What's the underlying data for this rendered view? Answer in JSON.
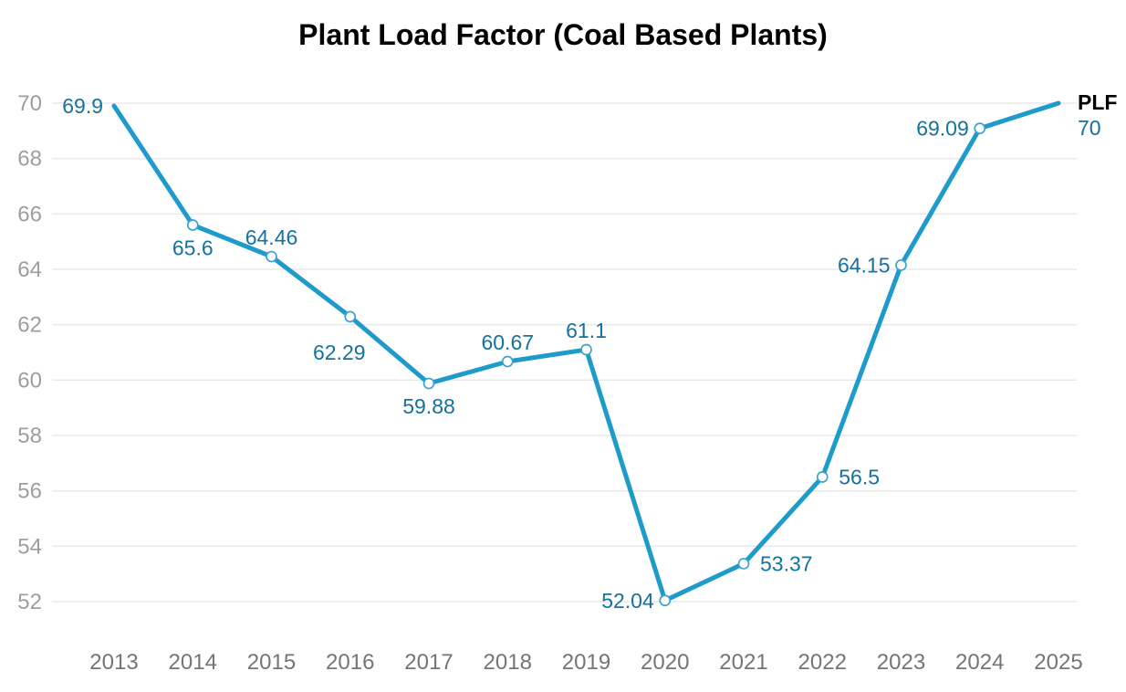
{
  "chart_data": {
    "type": "line",
    "title": "Plant Load Factor (Coal Based Plants)",
    "x": [
      "2013",
      "2014",
      "2015",
      "2016",
      "2017",
      "2018",
      "2019",
      "2020",
      "2021",
      "2022",
      "2023",
      "2024",
      "2025"
    ],
    "series": [
      {
        "name": "PLF",
        "values": [
          69.9,
          65.6,
          64.46,
          62.29,
          59.88,
          60.67,
          61.1,
          52.04,
          53.37,
          56.5,
          64.15,
          69.09,
          70
        ],
        "point_labels": [
          "69.9",
          "65.6",
          "64.46",
          "62.29",
          "59.88",
          "60.67",
          "61.1",
          "52.04",
          "53.37",
          "56.5",
          "64.15",
          "69.09",
          null
        ],
        "end_label": {
          "name": "PLF",
          "value": "70"
        }
      }
    ],
    "label_placements": [
      "left",
      "below",
      "above",
      "below",
      "below",
      "above",
      "above",
      "left",
      "right",
      "right",
      "left",
      "left",
      null
    ],
    "label_offsets": {
      "3": [
        -12,
        14
      ]
    },
    "y_ticks": [
      70,
      68,
      66,
      64,
      62,
      60,
      58,
      56,
      54,
      52
    ],
    "ylim": [
      52,
      70
    ],
    "xlabel": "",
    "ylabel": "",
    "grid": "horizontal-only",
    "legend_position": "end-of-line",
    "marker_style": "open-circle",
    "first_last_markers": false
  },
  "colors": {
    "line": "#1E9BCB",
    "marker_stroke": "#3FA2CC",
    "marker_fill": "#FFFFFF",
    "data_label": "#15719E",
    "title": "#000000",
    "y_tick_label": "#9E9E9E",
    "x_tick_label": "#757575",
    "gridline": "#E8E8E8",
    "background": "#FFFFFF"
  }
}
